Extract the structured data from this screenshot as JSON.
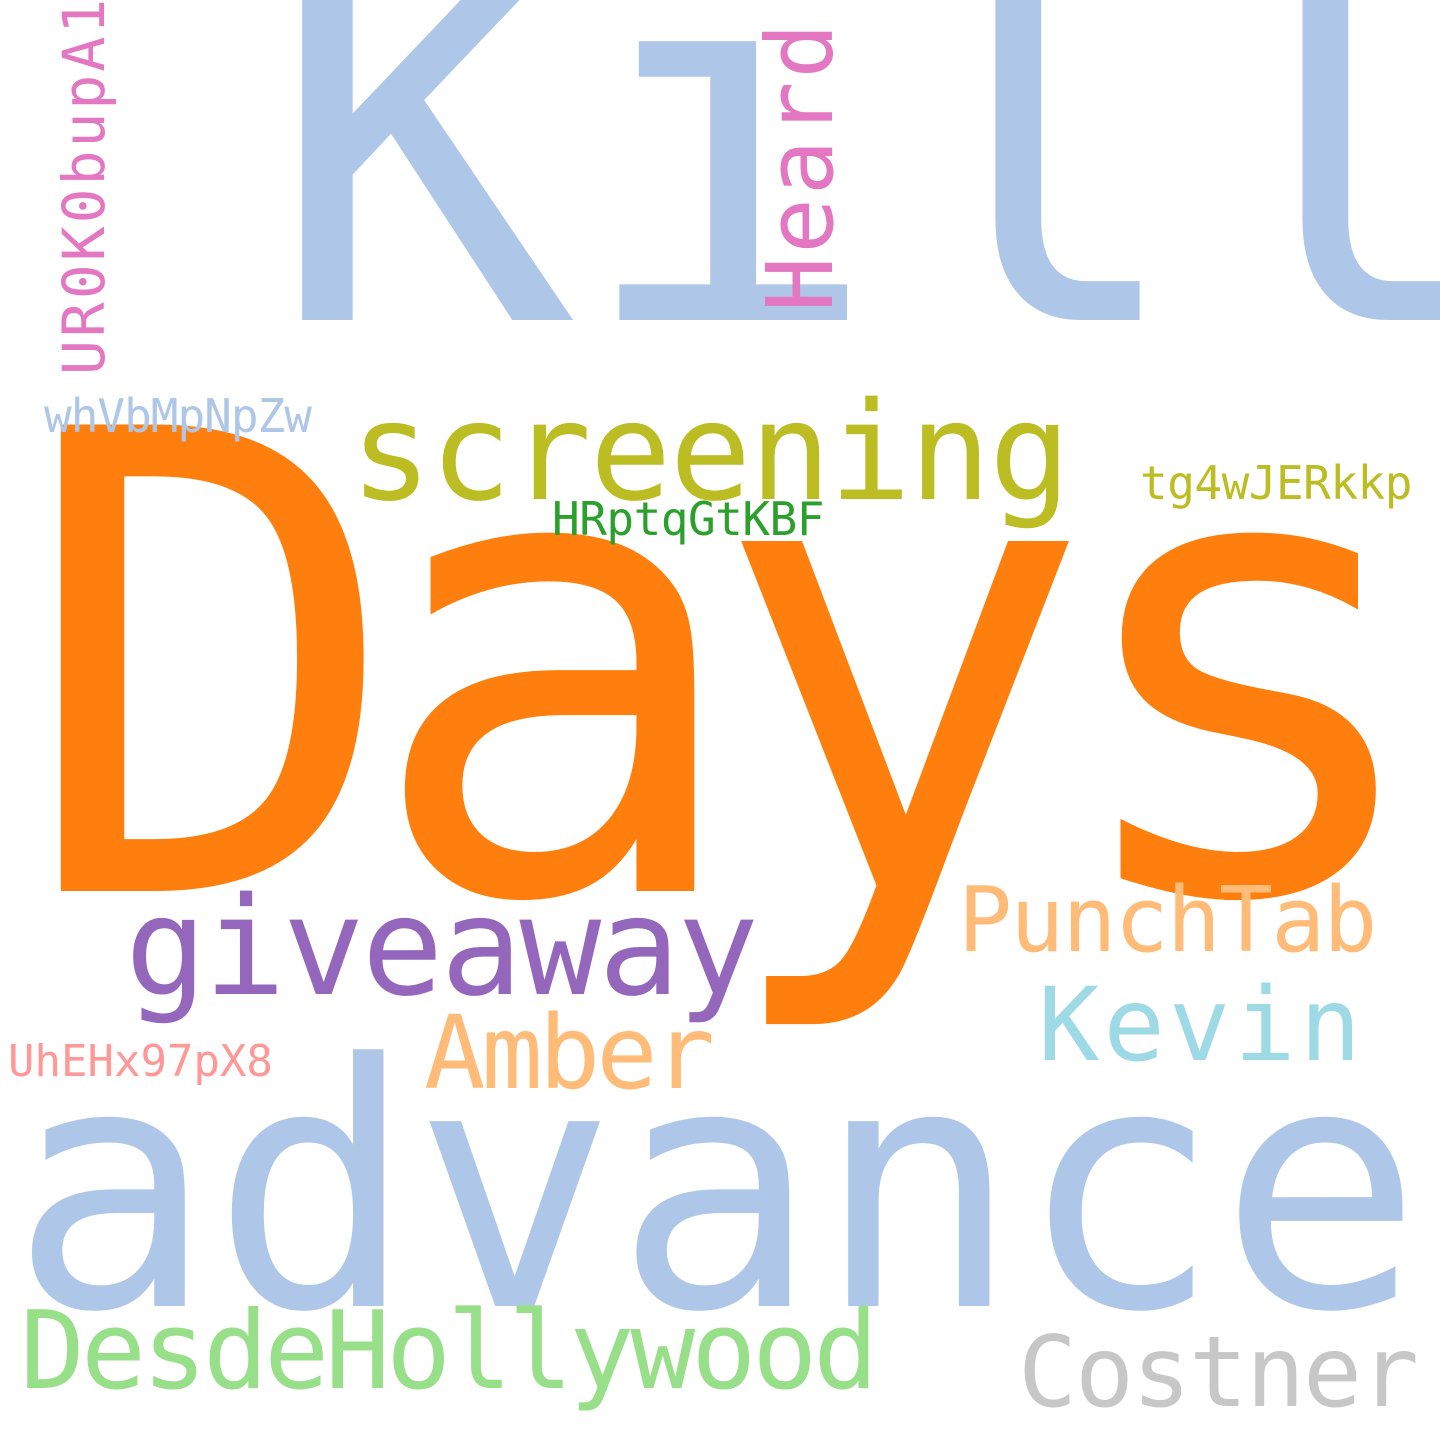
{
  "words": [
    {
      "text": "Kill",
      "color": "#aec7e8",
      "orientation": "horizontal"
    },
    {
      "text": "Days",
      "color": "#ff7f0e",
      "orientation": "horizontal"
    },
    {
      "text": "advance",
      "color": "#aec7e8",
      "orientation": "horizontal"
    },
    {
      "text": "screening",
      "color": "#bcbd22",
      "orientation": "horizontal"
    },
    {
      "text": "giveaway",
      "color": "#9467bd",
      "orientation": "horizontal"
    },
    {
      "text": "PunchTab",
      "color": "#ffbb78",
      "orientation": "horizontal"
    },
    {
      "text": "Kevin",
      "color": "#9edae5",
      "orientation": "horizontal"
    },
    {
      "text": "Amber",
      "color": "#ffbb78",
      "orientation": "horizontal"
    },
    {
      "text": "DesdeHollywood",
      "color": "#98df8a",
      "orientation": "horizontal"
    },
    {
      "text": "Costner",
      "color": "#c7c7c7",
      "orientation": "horizontal"
    },
    {
      "text": "Heard",
      "color": "#e377c2",
      "orientation": "vertical"
    },
    {
      "text": "UR0K0bupA1",
      "color": "#e377c2",
      "orientation": "vertical"
    },
    {
      "text": "whVbMpNpZw",
      "color": "#aec7e8",
      "orientation": "horizontal"
    },
    {
      "text": "tg4wJERkkp",
      "color": "#bcbd22",
      "orientation": "horizontal"
    },
    {
      "text": "HRptqGtKBF",
      "color": "#2ca02c",
      "orientation": "horizontal"
    },
    {
      "text": "UhEHx97pX8",
      "color": "#ff9896",
      "orientation": "horizontal"
    }
  ]
}
